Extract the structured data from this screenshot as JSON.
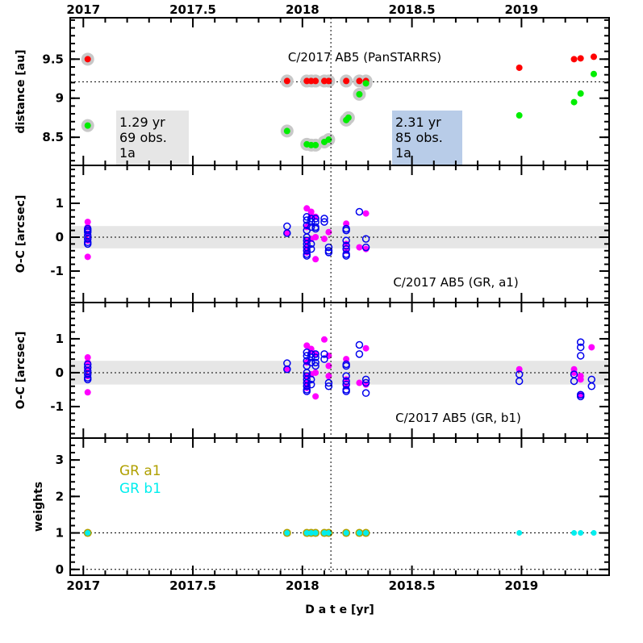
{
  "chart_data": [
    {
      "type": "scatter",
      "panel": "distance",
      "title": "C/2017 AB5 (PanSTARRS)",
      "ylabel": "distance [au]",
      "xlim": [
        2016.94,
        2019.4
      ],
      "ylim": [
        8.14,
        10.03
      ],
      "yticks": [
        "9.5",
        "9",
        "8.5"
      ],
      "reference_line_y": 9.21,
      "reference_line_x": 2018.13,
      "boxes": [
        {
          "lines": [
            "1.29 yr",
            "69 obs.",
            "1a"
          ],
          "color": "#e6e6e6"
        },
        {
          "lines": [
            "2.31 yr",
            "85 obs.",
            "1a"
          ],
          "color": "#b8cce8"
        }
      ],
      "series": [
        {
          "color": "#ff0000",
          "points": [
            [
              2017.02,
              9.5
            ],
            [
              2017.93,
              9.22
            ],
            [
              2018.02,
              9.22
            ],
            [
              2018.04,
              9.22
            ],
            [
              2018.06,
              9.22
            ],
            [
              2018.1,
              9.22
            ],
            [
              2018.12,
              9.22
            ],
            [
              2018.2,
              9.22
            ],
            [
              2018.26,
              9.22
            ],
            [
              2018.29,
              9.22
            ],
            [
              2018.99,
              9.39
            ],
            [
              2019.24,
              9.5
            ],
            [
              2019.27,
              9.51
            ],
            [
              2019.33,
              9.53
            ]
          ]
        },
        {
          "color": "#00ee00",
          "points": [
            [
              2017.02,
              8.65
            ],
            [
              2017.93,
              8.58
            ],
            [
              2018.02,
              8.41
            ],
            [
              2018.04,
              8.4
            ],
            [
              2018.06,
              8.4
            ],
            [
              2018.1,
              8.44
            ],
            [
              2018.12,
              8.47
            ],
            [
              2018.2,
              8.72
            ],
            [
              2018.21,
              8.75
            ],
            [
              2018.26,
              9.05
            ],
            [
              2018.29,
              9.19
            ],
            [
              2018.99,
              8.78
            ],
            [
              2019.24,
              8.95
            ],
            [
              2019.27,
              9.06
            ],
            [
              2019.33,
              9.31
            ]
          ]
        }
      ],
      "halo_until": 2018.3
    },
    {
      "type": "scatter",
      "panel": "residuals-a1",
      "title": "C/2017 AB5 (GR,  a1)",
      "ylabel": "O-C [arcsec]",
      "ylim": [
        -1.93,
        2.12
      ],
      "yticks": [
        "1",
        "0",
        "-1"
      ],
      "band": [
        -0.33,
        0.33
      ],
      "filled": [
        [
          2017.02,
          0.45
        ],
        [
          2017.02,
          0.3
        ],
        [
          2017.02,
          0.1
        ],
        [
          2017.02,
          -0.1
        ],
        [
          2017.02,
          -0.58
        ],
        [
          2017.93,
          0.12
        ],
        [
          2018.02,
          0.85
        ],
        [
          2018.02,
          0.3
        ],
        [
          2018.02,
          -0.1
        ],
        [
          2018.02,
          -0.3
        ],
        [
          2018.02,
          -0.45
        ],
        [
          2018.04,
          0.75
        ],
        [
          2018.04,
          0.65
        ],
        [
          2018.04,
          -0.05
        ],
        [
          2018.06,
          0.6
        ],
        [
          2018.06,
          0.0
        ],
        [
          2018.06,
          -0.65
        ],
        [
          2018.1,
          -0.05
        ],
        [
          2018.12,
          0.15
        ],
        [
          2018.2,
          0.4
        ],
        [
          2018.2,
          -0.2
        ],
        [
          2018.2,
          -0.4
        ],
        [
          2018.26,
          -0.3
        ],
        [
          2018.29,
          0.7
        ],
        [
          2018.29,
          -0.35
        ]
      ],
      "open": [
        [
          2017.02,
          0.25
        ],
        [
          2017.02,
          0.15
        ],
        [
          2017.02,
          0.05
        ],
        [
          2017.02,
          -0.05
        ],
        [
          2017.02,
          -0.15
        ],
        [
          2017.02,
          -0.2
        ],
        [
          2017.02,
          0.2
        ],
        [
          2017.93,
          0.32
        ],
        [
          2017.93,
          0.12
        ],
        [
          2018.02,
          0.6
        ],
        [
          2018.02,
          0.5
        ],
        [
          2018.02,
          0.35
        ],
        [
          2018.02,
          0.2
        ],
        [
          2018.02,
          0.0
        ],
        [
          2018.02,
          -0.1
        ],
        [
          2018.02,
          -0.2
        ],
        [
          2018.02,
          -0.3
        ],
        [
          2018.02,
          -0.4
        ],
        [
          2018.02,
          -0.5
        ],
        [
          2018.02,
          -0.55
        ],
        [
          2018.04,
          0.55
        ],
        [
          2018.04,
          0.45
        ],
        [
          2018.04,
          0.3
        ],
        [
          2018.04,
          -0.2
        ],
        [
          2018.04,
          -0.35
        ],
        [
          2018.06,
          0.55
        ],
        [
          2018.06,
          0.45
        ],
        [
          2018.06,
          0.3
        ],
        [
          2018.06,
          0.25
        ],
        [
          2018.1,
          0.55
        ],
        [
          2018.1,
          0.45
        ],
        [
          2018.12,
          -0.3
        ],
        [
          2018.12,
          -0.4
        ],
        [
          2018.12,
          -0.45
        ],
        [
          2018.2,
          0.25
        ],
        [
          2018.2,
          0.2
        ],
        [
          2018.2,
          -0.1
        ],
        [
          2018.2,
          -0.25
        ],
        [
          2018.2,
          -0.35
        ],
        [
          2018.2,
          -0.5
        ],
        [
          2018.2,
          -0.55
        ],
        [
          2018.26,
          0.75
        ],
        [
          2018.29,
          -0.05
        ],
        [
          2018.29,
          -0.3
        ]
      ]
    },
    {
      "type": "scatter",
      "panel": "residuals-b1",
      "title": "C/2017 AB5 (GR, b1)",
      "ylabel": "O-C [arcsec]",
      "ylim": [
        -1.93,
        2.07
      ],
      "yticks": [
        "1",
        "0",
        "-1"
      ],
      "band": [
        -0.35,
        0.35
      ],
      "filled": [
        [
          2017.02,
          0.45
        ],
        [
          2017.02,
          0.3
        ],
        [
          2017.02,
          0.1
        ],
        [
          2017.02,
          -0.1
        ],
        [
          2017.02,
          -0.58
        ],
        [
          2017.93,
          0.12
        ],
        [
          2018.02,
          0.8
        ],
        [
          2018.02,
          0.3
        ],
        [
          2018.02,
          -0.1
        ],
        [
          2018.02,
          -0.3
        ],
        [
          2018.02,
          -0.45
        ],
        [
          2018.04,
          0.7
        ],
        [
          2018.04,
          0.65
        ],
        [
          2018.04,
          -0.05
        ],
        [
          2018.06,
          0.55
        ],
        [
          2018.06,
          0.0
        ],
        [
          2018.06,
          -0.7
        ],
        [
          2018.1,
          0.98
        ],
        [
          2018.12,
          0.5
        ],
        [
          2018.12,
          0.2
        ],
        [
          2018.12,
          -0.1
        ],
        [
          2018.2,
          0.4
        ],
        [
          2018.2,
          -0.2
        ],
        [
          2018.2,
          -0.4
        ],
        [
          2018.26,
          -0.3
        ],
        [
          2018.29,
          0.72
        ],
        [
          2018.29,
          -0.35
        ],
        [
          2018.99,
          0.1
        ],
        [
          2019.24,
          0.1
        ],
        [
          2019.24,
          0.0
        ],
        [
          2019.27,
          -0.1
        ],
        [
          2019.27,
          -0.2
        ],
        [
          2019.27,
          -0.65
        ],
        [
          2019.32,
          0.75
        ]
      ],
      "open": [
        [
          2017.02,
          0.25
        ],
        [
          2017.02,
          0.15
        ],
        [
          2017.02,
          0.05
        ],
        [
          2017.02,
          -0.05
        ],
        [
          2017.02,
          -0.15
        ],
        [
          2017.02,
          -0.2
        ],
        [
          2017.93,
          0.28
        ],
        [
          2017.93,
          0.1
        ],
        [
          2018.02,
          0.6
        ],
        [
          2018.02,
          0.5
        ],
        [
          2018.02,
          0.35
        ],
        [
          2018.02,
          0.2
        ],
        [
          2018.02,
          0.0
        ],
        [
          2018.02,
          -0.1
        ],
        [
          2018.02,
          -0.2
        ],
        [
          2018.02,
          -0.3
        ],
        [
          2018.02,
          -0.4
        ],
        [
          2018.02,
          -0.5
        ],
        [
          2018.02,
          -0.55
        ],
        [
          2018.04,
          0.55
        ],
        [
          2018.04,
          0.45
        ],
        [
          2018.04,
          0.3
        ],
        [
          2018.04,
          -0.2
        ],
        [
          2018.04,
          -0.35
        ],
        [
          2018.06,
          0.55
        ],
        [
          2018.06,
          0.45
        ],
        [
          2018.06,
          0.3
        ],
        [
          2018.06,
          0.2
        ],
        [
          2018.1,
          0.55
        ],
        [
          2018.1,
          0.4
        ],
        [
          2018.12,
          -0.3
        ],
        [
          2018.12,
          -0.4
        ],
        [
          2018.2,
          0.25
        ],
        [
          2018.2,
          0.2
        ],
        [
          2018.2,
          -0.1
        ],
        [
          2018.2,
          -0.25
        ],
        [
          2018.2,
          -0.35
        ],
        [
          2018.2,
          -0.5
        ],
        [
          2018.2,
          -0.55
        ],
        [
          2018.26,
          0.82
        ],
        [
          2018.26,
          0.55
        ],
        [
          2018.29,
          -0.2
        ],
        [
          2018.29,
          -0.3
        ],
        [
          2018.29,
          -0.6
        ],
        [
          2018.99,
          -0.05
        ],
        [
          2018.99,
          -0.25
        ],
        [
          2019.24,
          -0.05
        ],
        [
          2019.24,
          -0.25
        ],
        [
          2019.27,
          0.9
        ],
        [
          2019.27,
          0.75
        ],
        [
          2019.27,
          0.5
        ],
        [
          2019.27,
          -0.65
        ],
        [
          2019.27,
          -0.7
        ],
        [
          2019.32,
          -0.2
        ],
        [
          2019.32,
          -0.4
        ]
      ]
    },
    {
      "type": "scatter",
      "panel": "weights",
      "ylabel": "weights",
      "ylim": [
        -0.16,
        3.6
      ],
      "yticks": [
        "3",
        "2",
        "1",
        "0"
      ],
      "reference_line_y": 1,
      "legend": [
        {
          "name": "GR a1",
          "color": "#b0a000"
        },
        {
          "name": "GR b1",
          "color": "#00eeee"
        }
      ],
      "series": [
        {
          "name": "GR a1",
          "color": "#b0a000",
          "points": [
            [
              2017.02,
              1
            ],
            [
              2017.93,
              1
            ],
            [
              2018.02,
              1
            ],
            [
              2018.04,
              1
            ],
            [
              2018.06,
              1
            ],
            [
              2018.1,
              1
            ],
            [
              2018.12,
              1
            ],
            [
              2018.2,
              1
            ],
            [
              2018.26,
              1
            ],
            [
              2018.29,
              1
            ]
          ]
        },
        {
          "name": "GR b1",
          "color": "#00eeee",
          "points": [
            [
              2017.02,
              1
            ],
            [
              2017.93,
              1
            ],
            [
              2018.02,
              1
            ],
            [
              2018.04,
              1
            ],
            [
              2018.06,
              1
            ],
            [
              2018.1,
              1
            ],
            [
              2018.12,
              1
            ],
            [
              2018.2,
              1
            ],
            [
              2018.26,
              1
            ],
            [
              2018.29,
              1
            ],
            [
              2018.99,
              1
            ],
            [
              2019.24,
              1
            ],
            [
              2019.27,
              1
            ],
            [
              2019.33,
              1
            ]
          ]
        }
      ]
    }
  ],
  "xaxis": {
    "label": "D a t e [yr]",
    "ticks": [
      "2017",
      "2017.5",
      "2018",
      "2018.5",
      "2019"
    ],
    "tick_values": [
      2017,
      2017.5,
      2018,
      2018.5,
      2019
    ]
  }
}
